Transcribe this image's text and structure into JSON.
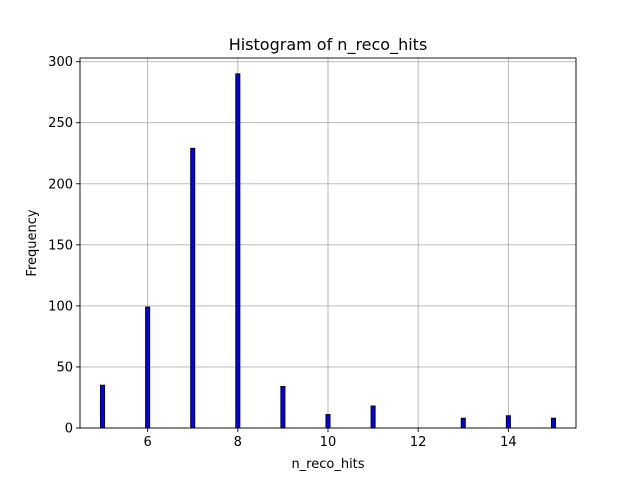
{
  "chart_data": {
    "type": "bar",
    "title": "Histogram of n_reco_hits",
    "xlabel": "n_reco_hits",
    "ylabel": "Frequency",
    "xlim": [
      4.5,
      15.5
    ],
    "ylim": [
      0,
      303
    ],
    "xticks": [
      6,
      8,
      10,
      12,
      14
    ],
    "yticks": [
      0,
      50,
      100,
      150,
      200,
      250,
      300
    ],
    "grid": true,
    "bar_color": "#0000ff",
    "edge_color": "#000000",
    "x": [
      5,
      6,
      7,
      8,
      9,
      10,
      11,
      13,
      14,
      15
    ],
    "values": [
      35,
      99,
      229,
      290,
      34,
      11,
      18,
      8,
      10,
      8
    ]
  }
}
